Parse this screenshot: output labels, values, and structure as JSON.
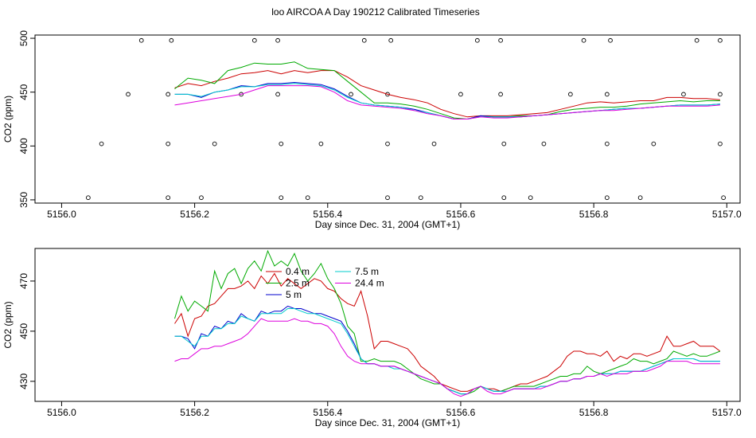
{
  "figure_title": "loo AIRCOA A  Day 190212  Calibrated Timeseries",
  "chart_data": [
    {
      "type": "line",
      "panel": "top",
      "xlabel": "Day since Dec. 31, 2004 (GMT+1)",
      "ylabel": "CO2 (ppm)",
      "xlim": [
        5155.96,
        5157.02
      ],
      "ylim": [
        347,
        503
      ],
      "x_ticks": [
        5156.0,
        5156.2,
        5156.4,
        5156.6,
        5156.8,
        5157.0
      ],
      "x_tick_labels": [
        "5156.0",
        "5156.2",
        "5156.4",
        "5156.6",
        "5156.8",
        "5157.0"
      ],
      "y_ticks": [
        350,
        400,
        450,
        500
      ],
      "y_tick_labels": [
        "350",
        "400",
        "450",
        "500"
      ],
      "x": [
        5156.17,
        5156.19,
        5156.21,
        5156.23,
        5156.25,
        5156.27,
        5156.29,
        5156.31,
        5156.33,
        5156.35,
        5156.37,
        5156.39,
        5156.41,
        5156.43,
        5156.45,
        5156.47,
        5156.49,
        5156.51,
        5156.53,
        5156.55,
        5156.57,
        5156.59,
        5156.61,
        5156.63,
        5156.65,
        5156.67,
        5156.69,
        5156.71,
        5156.73,
        5156.75,
        5156.77,
        5156.79,
        5156.81,
        5156.83,
        5156.85,
        5156.87,
        5156.89,
        5156.91,
        5156.93,
        5156.95,
        5156.97,
        5156.99
      ],
      "series": [
        {
          "name": "0.4 m",
          "color": "#cc0000",
          "values": [
            454,
            458,
            456,
            460,
            463,
            467,
            468,
            470,
            467,
            470,
            468,
            470,
            470,
            464,
            456,
            452,
            448,
            445,
            443,
            440,
            434,
            430,
            427,
            428,
            428,
            428,
            429,
            430,
            431,
            434,
            437,
            440,
            441,
            440,
            441,
            442,
            442,
            445,
            445,
            444,
            444,
            443
          ]
        },
        {
          "name": "2.5 m",
          "color": "#00aa00",
          "values": [
            453,
            463,
            461,
            458,
            470,
            473,
            477,
            476,
            476,
            478,
            472,
            471,
            470,
            460,
            450,
            440,
            440,
            439,
            437,
            434,
            430,
            426,
            425,
            428,
            427,
            427,
            428,
            428,
            429,
            432,
            434,
            435,
            436,
            436,
            437,
            439,
            440,
            441,
            442,
            441,
            442,
            442
          ]
        },
        {
          "name": "5 m",
          "color": "#0000cc",
          "values": [
            448,
            448,
            445,
            450,
            452,
            456,
            455,
            458,
            458,
            459,
            458,
            457,
            453,
            446,
            440,
            438,
            437,
            436,
            434,
            431,
            428,
            425,
            425,
            428,
            427,
            427,
            427,
            428,
            429,
            430,
            431,
            432,
            433,
            434,
            435,
            435,
            436,
            437,
            438,
            438,
            438,
            439
          ]
        },
        {
          "name": "7.5 m",
          "color": "#00cccc",
          "values": [
            448,
            448,
            446,
            450,
            452,
            455,
            455,
            457,
            457,
            458,
            457,
            456,
            452,
            445,
            440,
            438,
            437,
            436,
            433,
            431,
            428,
            425,
            425,
            427,
            427,
            427,
            427,
            428,
            429,
            430,
            431,
            432,
            433,
            434,
            435,
            435,
            436,
            437,
            438,
            438,
            438,
            439
          ]
        },
        {
          "name": "24.4 m",
          "color": "#dd00dd",
          "values": [
            438,
            440,
            442,
            444,
            446,
            448,
            452,
            456,
            456,
            456,
            456,
            455,
            450,
            442,
            438,
            437,
            436,
            435,
            433,
            430,
            428,
            425,
            425,
            427,
            426,
            426,
            427,
            428,
            429,
            430,
            431,
            432,
            433,
            433,
            434,
            435,
            436,
            437,
            437,
            437,
            437,
            438
          ]
        }
      ],
      "markers": {
        "symbol": "open-circle",
        "points": [
          {
            "x": 5156.04,
            "y": 352
          },
          {
            "x": 5156.06,
            "y": 402
          },
          {
            "x": 5156.1,
            "y": 448
          },
          {
            "x": 5156.12,
            "y": 498
          },
          {
            "x": 5156.16,
            "y": 352
          },
          {
            "x": 5156.16,
            "y": 402
          },
          {
            "x": 5156.16,
            "y": 448
          },
          {
            "x": 5156.165,
            "y": 498
          },
          {
            "x": 5156.21,
            "y": 352
          },
          {
            "x": 5156.23,
            "y": 402
          },
          {
            "x": 5156.27,
            "y": 448
          },
          {
            "x": 5156.29,
            "y": 498
          },
          {
            "x": 5156.325,
            "y": 448
          },
          {
            "x": 5156.325,
            "y": 498
          },
          {
            "x": 5156.33,
            "y": 402
          },
          {
            "x": 5156.33,
            "y": 352
          },
          {
            "x": 5156.37,
            "y": 352
          },
          {
            "x": 5156.39,
            "y": 402
          },
          {
            "x": 5156.435,
            "y": 448
          },
          {
            "x": 5156.455,
            "y": 498
          },
          {
            "x": 5156.49,
            "y": 352
          },
          {
            "x": 5156.49,
            "y": 402
          },
          {
            "x": 5156.49,
            "y": 448
          },
          {
            "x": 5156.495,
            "y": 498
          },
          {
            "x": 5156.54,
            "y": 352
          },
          {
            "x": 5156.56,
            "y": 402
          },
          {
            "x": 5156.6,
            "y": 448
          },
          {
            "x": 5156.625,
            "y": 498
          },
          {
            "x": 5156.66,
            "y": 498
          },
          {
            "x": 5156.66,
            "y": 448
          },
          {
            "x": 5156.665,
            "y": 402
          },
          {
            "x": 5156.665,
            "y": 352
          },
          {
            "x": 5156.705,
            "y": 352
          },
          {
            "x": 5156.725,
            "y": 402
          },
          {
            "x": 5156.765,
            "y": 448
          },
          {
            "x": 5156.785,
            "y": 498
          },
          {
            "x": 5156.82,
            "y": 352
          },
          {
            "x": 5156.82,
            "y": 402
          },
          {
            "x": 5156.82,
            "y": 448
          },
          {
            "x": 5156.825,
            "y": 498
          },
          {
            "x": 5156.87,
            "y": 352
          },
          {
            "x": 5156.89,
            "y": 402
          },
          {
            "x": 5156.935,
            "y": 448
          },
          {
            "x": 5156.955,
            "y": 498
          },
          {
            "x": 5156.99,
            "y": 498
          },
          {
            "x": 5156.99,
            "y": 448
          },
          {
            "x": 5156.99,
            "y": 402
          },
          {
            "x": 5156.995,
            "y": 352
          }
        ]
      },
      "grid": false
    },
    {
      "type": "line",
      "panel": "bottom",
      "xlabel": "Day since Dec. 31, 2004 (GMT+1)",
      "ylabel": "CO2 (ppm)",
      "xlim": [
        5155.96,
        5157.02
      ],
      "ylim": [
        422,
        483
      ],
      "x_ticks": [
        5156.0,
        5156.2,
        5156.4,
        5156.6,
        5156.8,
        5157.0
      ],
      "x_tick_labels": [
        "5156.0",
        "5156.2",
        "5156.4",
        "5156.6",
        "5156.8",
        "5157.0"
      ],
      "y_ticks": [
        430,
        450,
        470
      ],
      "y_tick_labels": [
        "430",
        "450",
        "470"
      ],
      "legend": {
        "placement": "top-left",
        "entries": [
          {
            "label": "0.4 m",
            "color": "#cc0000"
          },
          {
            "label": "2.5 m",
            "color": "#00aa00"
          },
          {
            "label": "5 m",
            "color": "#0000cc"
          },
          {
            "label": "7.5 m",
            "color": "#00cccc"
          },
          {
            "label": "24.4 m",
            "color": "#dd00dd"
          }
        ]
      },
      "x": [
        5156.17,
        5156.18,
        5156.19,
        5156.2,
        5156.21,
        5156.22,
        5156.23,
        5156.24,
        5156.25,
        5156.26,
        5156.27,
        5156.28,
        5156.29,
        5156.3,
        5156.31,
        5156.32,
        5156.33,
        5156.34,
        5156.35,
        5156.36,
        5156.37,
        5156.38,
        5156.39,
        5156.4,
        5156.41,
        5156.42,
        5156.43,
        5156.44,
        5156.45,
        5156.46,
        5156.47,
        5156.48,
        5156.49,
        5156.5,
        5156.51,
        5156.52,
        5156.53,
        5156.54,
        5156.55,
        5156.56,
        5156.57,
        5156.58,
        5156.59,
        5156.6,
        5156.61,
        5156.62,
        5156.63,
        5156.64,
        5156.65,
        5156.66,
        5156.67,
        5156.68,
        5156.69,
        5156.7,
        5156.71,
        5156.72,
        5156.73,
        5156.74,
        5156.75,
        5156.76,
        5156.77,
        5156.78,
        5156.79,
        5156.8,
        5156.81,
        5156.82,
        5156.83,
        5156.84,
        5156.85,
        5156.86,
        5156.87,
        5156.88,
        5156.89,
        5156.9,
        5156.91,
        5156.92,
        5156.93,
        5156.94,
        5156.95,
        5156.96,
        5156.97,
        5156.98,
        5156.99
      ],
      "series": [
        {
          "name": "0.4 m",
          "color": "#cc0000",
          "values": [
            453,
            457,
            448,
            455,
            456,
            460,
            461,
            464,
            467,
            467,
            468,
            470,
            467,
            472,
            469,
            473,
            468,
            471,
            469,
            467,
            469,
            471,
            470,
            467,
            466,
            463,
            461,
            460,
            466,
            456,
            443,
            446,
            446,
            445,
            444,
            443,
            440,
            436,
            434,
            432,
            429,
            428,
            427,
            426,
            426,
            427,
            428,
            427,
            427,
            426,
            427,
            428,
            429,
            429,
            430,
            431,
            432,
            434,
            436,
            440,
            442,
            442,
            441,
            441,
            440,
            442,
            438,
            440,
            439,
            441,
            441,
            440,
            441,
            442,
            448,
            444,
            444,
            445,
            446,
            444,
            444,
            444,
            442
          ]
        },
        {
          "name": "2.5 m",
          "color": "#00aa00",
          "values": [
            455,
            464,
            458,
            462,
            460,
            458,
            474,
            467,
            473,
            475,
            469,
            475,
            478,
            474,
            482,
            476,
            478,
            476,
            481,
            474,
            470,
            473,
            477,
            471,
            467,
            461,
            452,
            449,
            438,
            438,
            439,
            438,
            438,
            438,
            437,
            435,
            433,
            431,
            430,
            429,
            429,
            427,
            426,
            425,
            425,
            426,
            428,
            427,
            426,
            426,
            427,
            428,
            428,
            428,
            428,
            429,
            430,
            431,
            432,
            432,
            433,
            433,
            436,
            434,
            433,
            434,
            435,
            436,
            437,
            439,
            438,
            438,
            437,
            438,
            439,
            442,
            441,
            440,
            441,
            440,
            440,
            441,
            442
          ]
        },
        {
          "name": "5 m",
          "color": "#0000cc",
          "values": [
            448,
            448,
            447,
            443,
            449,
            448,
            452,
            451,
            454,
            453,
            457,
            455,
            454,
            458,
            457,
            458,
            458,
            460,
            459,
            459,
            458,
            457,
            457,
            456,
            455,
            454,
            450,
            445,
            439,
            437,
            437,
            436,
            436,
            436,
            435,
            434,
            433,
            432,
            431,
            430,
            429,
            427,
            426,
            425,
            425,
            427,
            428,
            427,
            426,
            426,
            426,
            427,
            427,
            427,
            427,
            428,
            428,
            429,
            430,
            430,
            431,
            431,
            432,
            432,
            433,
            433,
            433,
            434,
            434,
            434,
            434,
            435,
            436,
            437,
            438,
            439,
            439,
            439,
            439,
            438,
            438,
            438,
            438
          ]
        },
        {
          "name": "7.5 m",
          "color": "#00cccc",
          "values": [
            448,
            448,
            446,
            444,
            448,
            448,
            451,
            451,
            453,
            453,
            456,
            455,
            454,
            457,
            457,
            457,
            457,
            459,
            459,
            458,
            457,
            457,
            456,
            455,
            454,
            453,
            449,
            444,
            439,
            437,
            437,
            436,
            436,
            435,
            435,
            434,
            433,
            432,
            431,
            430,
            429,
            427,
            426,
            425,
            425,
            427,
            428,
            427,
            426,
            426,
            426,
            427,
            427,
            427,
            427,
            428,
            428,
            429,
            430,
            430,
            431,
            431,
            432,
            432,
            433,
            433,
            433,
            434,
            434,
            434,
            434,
            435,
            436,
            437,
            438,
            439,
            439,
            439,
            439,
            438,
            438,
            438,
            438
          ]
        },
        {
          "name": "24.4 m",
          "color": "#dd00dd",
          "values": [
            438,
            439,
            439,
            441,
            443,
            443,
            444,
            444,
            445,
            446,
            447,
            449,
            452,
            455,
            454,
            454,
            454,
            454,
            455,
            454,
            454,
            453,
            453,
            452,
            449,
            444,
            440,
            438,
            437,
            437,
            437,
            436,
            436,
            436,
            435,
            434,
            433,
            432,
            431,
            430,
            429,
            427,
            425,
            424,
            425,
            427,
            428,
            426,
            425,
            425,
            426,
            427,
            427,
            427,
            427,
            427,
            428,
            429,
            430,
            430,
            431,
            431,
            432,
            432,
            433,
            432,
            433,
            433,
            433,
            434,
            434,
            434,
            435,
            436,
            438,
            438,
            438,
            438,
            437,
            437,
            437,
            437,
            437
          ]
        }
      ],
      "grid": false
    }
  ]
}
